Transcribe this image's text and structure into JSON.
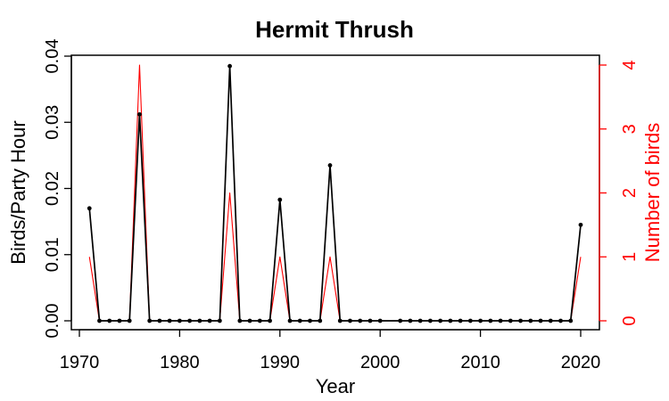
{
  "chart_data": {
    "type": "line",
    "title": "Hermit Thrush",
    "xlabel": "Year",
    "ylabel_left": "Birds/Party Hour",
    "ylabel_right": "Number of birds",
    "xlim": [
      1970,
      2020
    ],
    "ylim_left": [
      0,
      0.04
    ],
    "ylim_right": [
      0,
      4
    ],
    "x_ticks": [
      "1970",
      "1980",
      "1990",
      "2000",
      "2010",
      "2020"
    ],
    "y_ticks_left": [
      "0.00",
      "0.01",
      "0.02",
      "0.03",
      "0.04"
    ],
    "y_ticks_right": [
      "0",
      "1",
      "2",
      "3",
      "4"
    ],
    "colors": {
      "left": "#000000",
      "right": "#ff0000"
    },
    "series": [
      {
        "axis": "left",
        "style": "line-with-points",
        "color": "#000000",
        "x": [
          1971,
          1972,
          1973,
          1974,
          1975,
          1976,
          1977,
          1978,
          1979,
          1980,
          1981,
          1982,
          1983,
          1984,
          1985,
          1986,
          1987,
          1988,
          1989,
          1990,
          1991,
          1992,
          1993,
          1994,
          1995,
          1996,
          1997,
          1998,
          1999,
          2000,
          2002,
          2003,
          2004,
          2005,
          2006,
          2007,
          2008,
          2009,
          2010,
          2011,
          2012,
          2013,
          2014,
          2015,
          2016,
          2017,
          2018,
          2019,
          2020
        ],
        "values": [
          0.017,
          0,
          0,
          0,
          0,
          0.0312,
          0,
          0,
          0,
          0,
          0,
          0,
          0,
          0,
          0.0385,
          0,
          0,
          0,
          0,
          0.0183,
          0,
          0,
          0,
          0,
          0.0235,
          0,
          0,
          0,
          0,
          0,
          0,
          0,
          0,
          0,
          0,
          0,
          0,
          0,
          0,
          0,
          0,
          0,
          0,
          0,
          0,
          0,
          0,
          0,
          0.0145
        ]
      },
      {
        "axis": "right",
        "style": "line",
        "color": "#ff0000",
        "x": [
          1971,
          1972,
          1973,
          1974,
          1975,
          1976,
          1977,
          1978,
          1979,
          1980,
          1981,
          1982,
          1983,
          1984,
          1985,
          1986,
          1987,
          1988,
          1989,
          1990,
          1991,
          1992,
          1993,
          1994,
          1995,
          1996,
          1997,
          1998,
          1999,
          2000,
          2002,
          2003,
          2004,
          2005,
          2006,
          2007,
          2008,
          2009,
          2010,
          2011,
          2012,
          2013,
          2014,
          2015,
          2016,
          2017,
          2018,
          2019,
          2020
        ],
        "values": [
          1,
          0,
          0,
          0,
          0,
          4,
          0,
          0,
          0,
          0,
          0,
          0,
          0,
          0,
          2,
          0,
          0,
          0,
          0,
          1,
          0,
          0,
          0,
          0,
          1,
          0,
          0,
          0,
          0,
          0,
          0,
          0,
          0,
          0,
          0,
          0,
          0,
          0,
          0,
          0,
          0,
          0,
          0,
          0,
          0,
          0,
          0,
          0,
          1
        ]
      }
    ]
  }
}
